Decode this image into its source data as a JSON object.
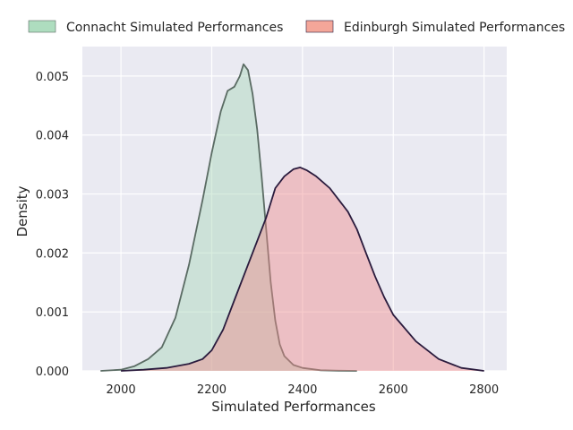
{
  "chart_data": {
    "type": "area",
    "title": "",
    "xlabel": "Simulated Performances",
    "ylabel": "Density",
    "xlim": [
      1915,
      2850
    ],
    "ylim": [
      0,
      0.0055
    ],
    "x_ticks": [
      2000,
      2200,
      2400,
      2600,
      2800
    ],
    "y_ticks": [
      0.0,
      0.001,
      0.002,
      0.003,
      0.004,
      0.005
    ],
    "grid": true,
    "legend_position": "top",
    "colors": {
      "plot_background": "#EAEAF2",
      "grid": "#FFFFFF",
      "text": "#262626"
    },
    "series": [
      {
        "name": "Connacht Simulated Performances",
        "fill": "#A8D8B9",
        "fill_opacity": 0.45,
        "legend_fill": "#AEDDBF",
        "stroke": "#5A6B63",
        "x": [
          1955,
          2000,
          2030,
          2060,
          2090,
          2120,
          2150,
          2180,
          2200,
          2220,
          2235,
          2250,
          2262,
          2270,
          2280,
          2290,
          2300,
          2310,
          2320,
          2330,
          2340,
          2350,
          2360,
          2380,
          2400,
          2440,
          2480,
          2520
        ],
        "y": [
          0.0,
          2e-05,
          8e-05,
          0.0002,
          0.0004,
          0.0009,
          0.0018,
          0.0029,
          0.0037,
          0.0044,
          0.00475,
          0.00482,
          0.005,
          0.0052,
          0.0051,
          0.0047,
          0.0041,
          0.0033,
          0.0024,
          0.0015,
          0.00085,
          0.00045,
          0.00025,
          0.0001,
          5e-05,
          1e-05,
          3e-06,
          0.0
        ]
      },
      {
        "name": "Edinburgh Simulated Performances",
        "fill": "#F08C8C",
        "fill_opacity": 0.45,
        "legend_fill": "#F4A699",
        "stroke": "#2A1B3D",
        "x": [
          2000,
          2050,
          2100,
          2150,
          2180,
          2200,
          2225,
          2250,
          2275,
          2300,
          2320,
          2340,
          2360,
          2380,
          2395,
          2410,
          2430,
          2460,
          2480,
          2500,
          2520,
          2540,
          2560,
          2580,
          2600,
          2650,
          2700,
          2750,
          2800
        ],
        "y": [
          0.0,
          2e-05,
          5e-05,
          0.00012,
          0.0002,
          0.00035,
          0.0007,
          0.0012,
          0.0017,
          0.0022,
          0.0026,
          0.0031,
          0.0033,
          0.00342,
          0.00345,
          0.0034,
          0.0033,
          0.0031,
          0.0029,
          0.0027,
          0.0024,
          0.002,
          0.0016,
          0.00125,
          0.00095,
          0.0005,
          0.0002,
          5e-05,
          0.0
        ]
      }
    ]
  }
}
